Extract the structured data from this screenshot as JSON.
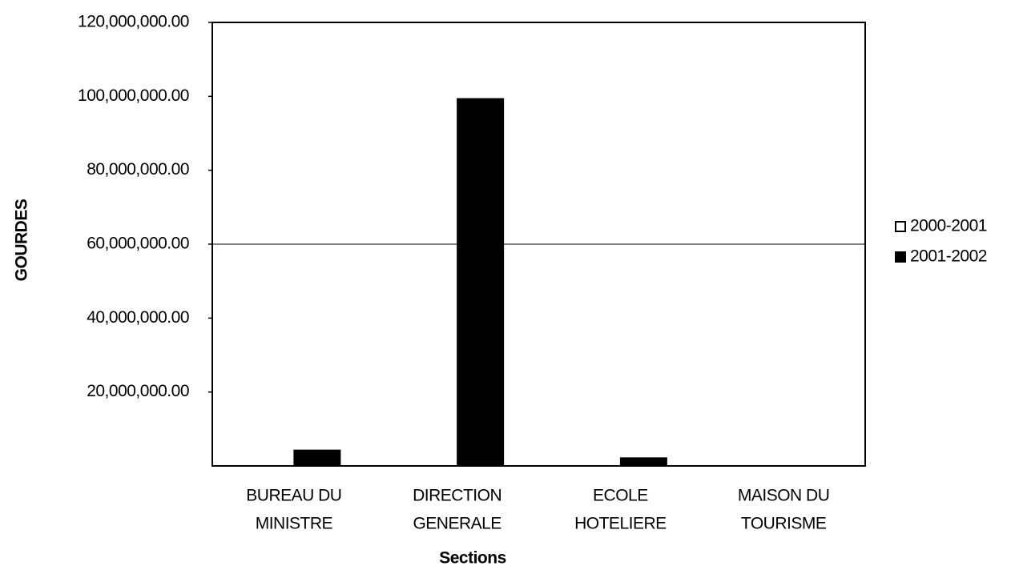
{
  "chart_data": {
    "type": "bar",
    "x_label": "Sections",
    "y_label": "GOURDES",
    "categories": [
      [
        "BUREAU DU",
        "MINISTRE"
      ],
      [
        "DIRECTION",
        "GENERALE"
      ],
      [
        "ECOLE",
        "HOTELIERE"
      ],
      [
        "MAISON DU",
        "TOURISME"
      ]
    ],
    "series": [
      {
        "name": "2000-2001",
        "color": "#ffffff",
        "values": [
          0,
          0,
          0,
          0
        ]
      },
      {
        "name": "2001-2002",
        "color": "#000000",
        "values": [
          4300000,
          99400000,
          2200000,
          0
        ]
      }
    ],
    "ylim": [
      0,
      120000000
    ],
    "yticks": [
      {
        "value": 20000000,
        "label": "20,000,000.00"
      },
      {
        "value": 40000000,
        "label": "40,000,000.00"
      },
      {
        "value": 60000000,
        "label": "60,000,000.00"
      },
      {
        "value": 80000000,
        "label": "80,000,000.00"
      },
      {
        "value": 100000000,
        "label": "100,000,000.00"
      },
      {
        "value": 120000000,
        "label": "120,000,000.00"
      }
    ],
    "hlines": [
      60000000
    ],
    "legend": "right"
  }
}
